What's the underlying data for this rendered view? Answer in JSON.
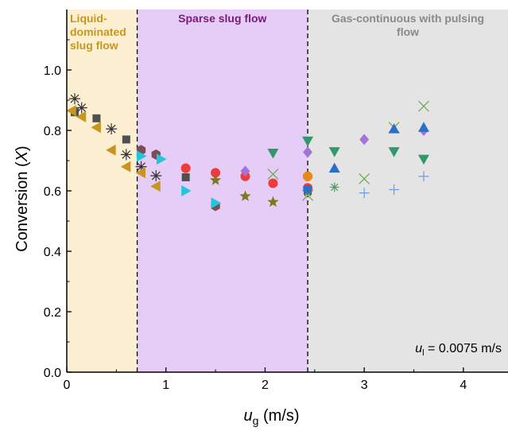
{
  "chart_data": {
    "type": "scatter",
    "xlabel": {
      "main": "u",
      "sub": "g",
      "unit": " (m/s)"
    },
    "ylabel": {
      "pre": "Conversion (",
      "italic": "X",
      "post": ")"
    },
    "xlim": [
      0,
      4.45
    ],
    "ylim": [
      0,
      1.2
    ],
    "xticks": [
      0,
      1,
      2,
      3,
      4
    ],
    "yticks": [
      0.0,
      0.2,
      0.4,
      0.6,
      0.8,
      1.0
    ],
    "ytick_labels": [
      "0.0",
      "0.2",
      "0.4",
      "0.6",
      "0.8",
      "1.0"
    ],
    "regions": [
      {
        "label_lines": [
          "Liquid-",
          "dominated",
          "slug flow"
        ],
        "x_start": 0,
        "x_end": 0.71,
        "fill": "#fdf0d2",
        "text_color": "#c8961e",
        "align": "left"
      },
      {
        "label_lines": [
          "Sparse slug flow"
        ],
        "x_start": 0.71,
        "x_end": 2.43,
        "fill": "#e6cdf7",
        "text_color": "#7a1a7a",
        "align": "center"
      },
      {
        "label_lines": [
          "Gas-continuous with pulsing",
          "flow"
        ],
        "x_start": 2.43,
        "x_end": 4.45,
        "fill": "#e4e4e4",
        "text_color": "#8a8a8a",
        "align": "center"
      }
    ],
    "boundaries": [
      0.71,
      2.43
    ],
    "annotation": {
      "main": "u",
      "sub": "l",
      "rest": " = 0.0075 m/s"
    },
    "series": [
      {
        "marker": "square",
        "color": "#505050",
        "points": [
          [
            0.08,
            0.86
          ],
          [
            0.3,
            0.84
          ],
          [
            0.6,
            0.77
          ],
          [
            1.2,
            0.645
          ],
          [
            2.43,
            0.6
          ]
        ]
      },
      {
        "marker": "asterisk",
        "color": "#333333",
        "points": [
          [
            0.08,
            0.905
          ],
          [
            0.15,
            0.875
          ],
          [
            0.45,
            0.805
          ],
          [
            0.6,
            0.72
          ],
          [
            0.75,
            0.68
          ],
          [
            0.9,
            0.65
          ]
        ]
      },
      {
        "marker": "triangle-left",
        "color": "#c8961e",
        "points": [
          [
            0.05,
            0.865
          ],
          [
            0.15,
            0.845
          ],
          [
            0.3,
            0.81
          ],
          [
            0.45,
            0.735
          ],
          [
            0.6,
            0.68
          ],
          [
            0.75,
            0.66
          ],
          [
            0.9,
            0.615
          ]
        ]
      },
      {
        "marker": "hexagon",
        "color": "#7a4e55",
        "points": [
          [
            0.75,
            0.735
          ],
          [
            0.9,
            0.72
          ],
          [
            1.5,
            0.55
          ]
        ]
      },
      {
        "marker": "triangle-right",
        "color": "#22c5dc",
        "points": [
          [
            0.75,
            0.715
          ],
          [
            0.95,
            0.705
          ],
          [
            1.2,
            0.6
          ],
          [
            1.5,
            0.56
          ]
        ]
      },
      {
        "marker": "circle",
        "color": "#ee3b3b",
        "points": [
          [
            1.2,
            0.675
          ],
          [
            1.5,
            0.66
          ],
          [
            1.8,
            0.648
          ],
          [
            2.08,
            0.625
          ],
          [
            2.43,
            0.61
          ]
        ]
      },
      {
        "marker": "diamond",
        "color": "#a374d8",
        "points": [
          [
            1.8,
            0.665
          ],
          [
            2.43,
            0.728
          ],
          [
            3.0,
            0.77
          ],
          [
            3.6,
            0.8
          ]
        ]
      },
      {
        "marker": "star",
        "color": "#7a7a1e",
        "points": [
          [
            1.5,
            0.635
          ],
          [
            1.8,
            0.582
          ],
          [
            2.08,
            0.563
          ],
          [
            2.43,
            0.597
          ]
        ]
      },
      {
        "marker": "x",
        "color": "#6aa84f",
        "points": [
          [
            2.08,
            0.655
          ],
          [
            2.43,
            0.585
          ],
          [
            3.0,
            0.64
          ],
          [
            3.3,
            0.81
          ],
          [
            3.6,
            0.88
          ]
        ]
      },
      {
        "marker": "triangle-down",
        "color": "#2e9a6a",
        "points": [
          [
            2.08,
            0.725
          ],
          [
            2.43,
            0.765
          ],
          [
            2.7,
            0.73
          ],
          [
            3.3,
            0.73
          ],
          [
            3.6,
            0.705
          ]
        ]
      },
      {
        "marker": "triangle-up",
        "color": "#2a70c8",
        "points": [
          [
            2.7,
            0.675
          ],
          [
            3.3,
            0.805
          ],
          [
            3.6,
            0.81
          ]
        ]
      },
      {
        "marker": "octagon",
        "color": "#e88a1a",
        "points": [
          [
            2.43,
            0.648
          ]
        ]
      },
      {
        "marker": "plus",
        "color": "#6a9ee0",
        "points": [
          [
            3.0,
            0.593
          ],
          [
            3.3,
            0.604
          ],
          [
            3.6,
            0.648
          ]
        ]
      },
      {
        "marker": "asterisk-small",
        "color": "#4aa060",
        "points": [
          [
            2.7,
            0.612
          ]
        ]
      },
      {
        "marker": "square",
        "color": "#2a70c8",
        "points": [
          [
            2.43,
            0.605
          ]
        ]
      }
    ]
  }
}
